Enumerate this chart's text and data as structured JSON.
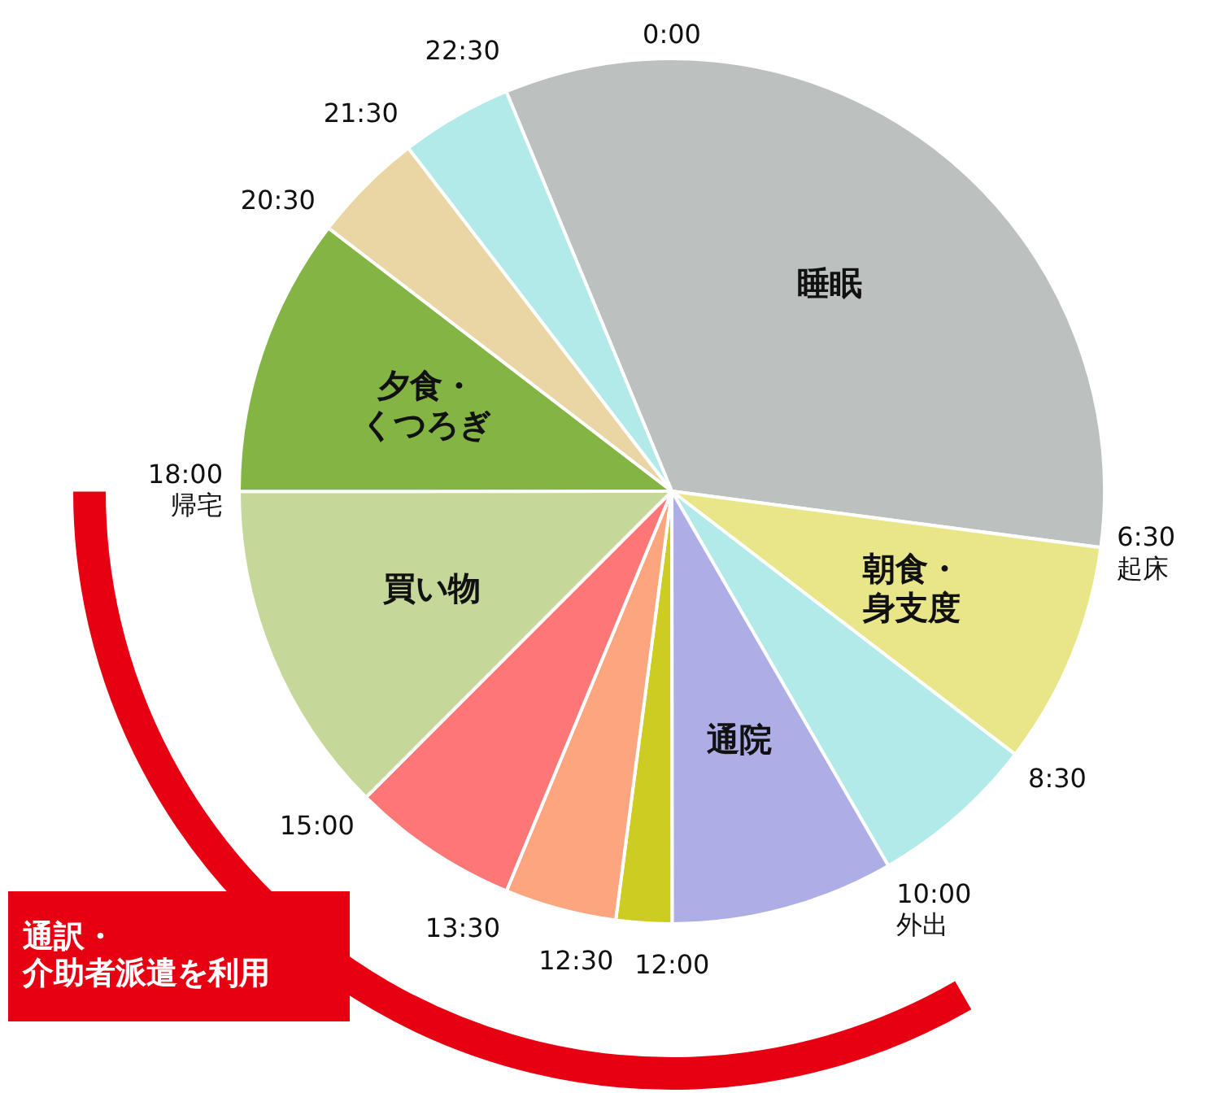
{
  "chart_data": {
    "type": "pie",
    "categories": [
      "睡眠",
      "朝食・身支度",
      null,
      "通院",
      null,
      null,
      null,
      "買い物",
      "夕食・くつろぎ",
      null,
      null
    ],
    "values": [
      33.33,
      8.33,
      6.25,
      8.33,
      2.08,
      4.17,
      6.25,
      12.5,
      10.42,
      4.17,
      4.17
    ],
    "colors": [
      "#bcc1c0",
      "#e9e68a",
      "#b2e9e9",
      "#aeaee6",
      "#cccc22",
      "#fda57f",
      "#fc7776",
      "#c5d89a",
      "#84b443",
      "#ead5a5",
      "#b2e9e9"
    ],
    "annotations": [
      "6:30\n起床",
      "8:30",
      "10:00\n外出",
      "12:00",
      "12:30",
      "13:30",
      "15:00",
      "18:00\n帰宅",
      "20:30",
      "21:30",
      "22:30",
      "0:00",
      "通訳・介助者派遣を利用"
    ],
    "legend": false
  }
}
